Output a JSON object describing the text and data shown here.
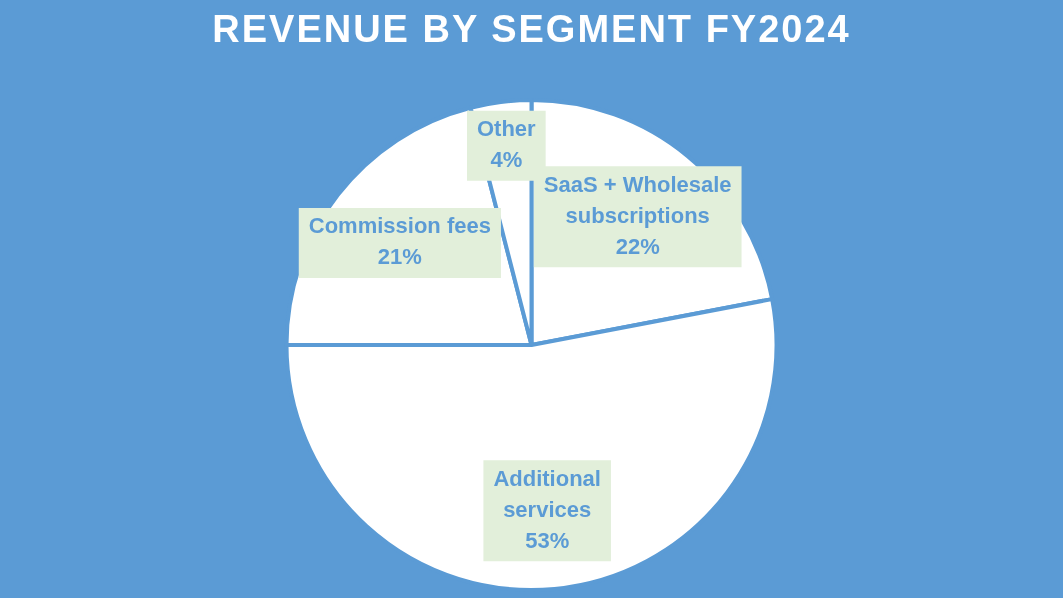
{
  "chart_data": {
    "type": "pie",
    "title": "REVENUE BY SEGMENT FY2024",
    "categories": [
      "SaaS + Wholesale subscriptions",
      "Additional services",
      "Commission fees",
      "Other"
    ],
    "values": [
      22,
      53,
      21,
      4
    ],
    "value_labels": [
      "22%",
      "53%",
      "21%",
      "4%"
    ],
    "colors": [
      "#ffffff",
      "#ffffff",
      "#ffffff",
      "#ffffff"
    ],
    "legend": false
  }
}
